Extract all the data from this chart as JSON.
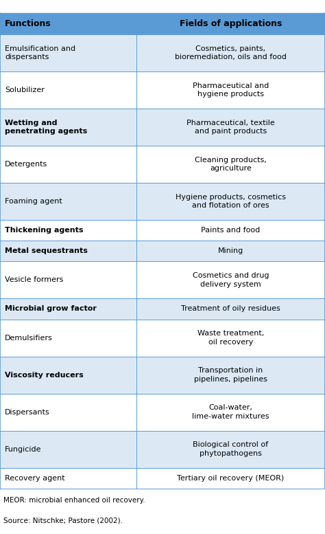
{
  "header": [
    "Functions",
    "Fields of applications"
  ],
  "rows": [
    [
      "Emulsification and\ndispersants",
      "Cosmetics, paints,\nbioremediation, oils and food"
    ],
    [
      "Solubilizer",
      "Pharmaceutical and\nhygiene products"
    ],
    [
      "Wetting and\npenetrating agents",
      "Pharmaceutical, textile\nand paint products"
    ],
    [
      "Detergents",
      "Cleaning products,\nagriculture"
    ],
    [
      "Foaming agent",
      "Hygiene products, cosmetics\nand flotation of ores"
    ],
    [
      "Thickening agents",
      "Paints and food"
    ],
    [
      "Metal sequestrants",
      "Mining"
    ],
    [
      "Vesicle formers",
      "Cosmetics and drug\ndelivery system"
    ],
    [
      "Microbial grow factor",
      "Treatment of oily residues"
    ],
    [
      "Demulsifiers",
      "Waste treatment,\noil recovery"
    ],
    [
      "Viscosity reducers",
      "Transportation in\npipelines, pipelines"
    ],
    [
      "Dispersants",
      "Coal-water,\nlime-water mixtures"
    ],
    [
      "Fungicide",
      "Biological control of\nphytopathogens"
    ],
    [
      "Recovery agent",
      "Tertiary oil recovery (MEOR)"
    ]
  ],
  "bold_left": [
    2,
    5,
    6,
    8,
    10
  ],
  "bold_right": [],
  "footnote1": "MEOR: microbial enhanced oil recovery.",
  "footnote2": "Source: Nitschke; Pastore (2002).",
  "header_bg": "#5b9bd5",
  "row_bg_even": "#dce9f5",
  "row_bg_odd": "#ffffff",
  "header_color": "#000000",
  "text_color": "#000000",
  "border_color": "#5b9bd5",
  "fig_bg": "#ffffff",
  "col_split": 0.42,
  "font_size": 8.0,
  "header_font_size": 9.0
}
